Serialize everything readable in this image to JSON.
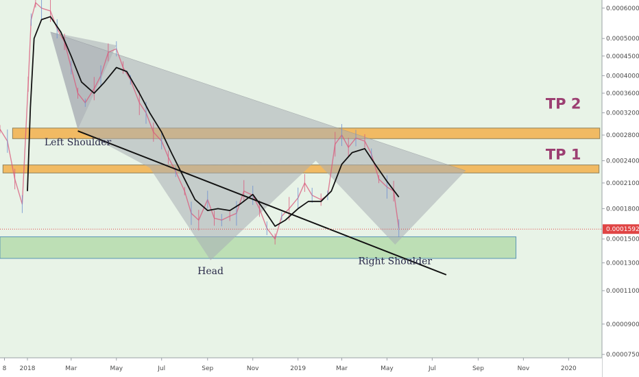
{
  "chart_data": {
    "type": "line",
    "title": "",
    "xlabel": "",
    "ylabel": "",
    "y_scale": "log",
    "ylim": [
      7.35e-05,
      0.00063
    ],
    "x_range": [
      "2017-11-25",
      "2020-02-15"
    ],
    "grid": false,
    "y_ticks": [
      "0.0006000",
      "0.0005000",
      "0.0004500",
      "0.0004000",
      "0.0003600",
      "0.0003200",
      "0.0002800",
      "0.0002400",
      "0.0002100",
      "0.0001800",
      "0.0001500",
      "0.0001300",
      "0.0001100",
      "0.0000900",
      "0.0000750"
    ],
    "x_ticks": [
      {
        "label": "8",
        "date": "2017-12-01"
      },
      {
        "label": "2018",
        "date": "2018-01-01"
      },
      {
        "label": "Mar",
        "date": "2018-03-01"
      },
      {
        "label": "May",
        "date": "2018-05-01"
      },
      {
        "label": "Jul",
        "date": "2018-07-01"
      },
      {
        "label": "Sep",
        "date": "2018-09-01"
      },
      {
        "label": "Nov",
        "date": "2018-11-01"
      },
      {
        "label": "2019",
        "date": "2019-01-01"
      },
      {
        "label": "Mar",
        "date": "2019-03-01"
      },
      {
        "label": "May",
        "date": "2019-05-01"
      },
      {
        "label": "Jul",
        "date": "2019-07-01"
      },
      {
        "label": "Sep",
        "date": "2019-09-01"
      },
      {
        "label": "Nov",
        "date": "2019-11-01"
      },
      {
        "label": "2020",
        "date": "2020-01-01"
      }
    ],
    "last_price": {
      "label": "0.0001592",
      "value": 0.0001592
    },
    "series": [
      {
        "role": "price",
        "color": "#d9577a",
        "points": [
          [
            "2017-11-25",
            0.00029
          ],
          [
            "2017-12-05",
            0.00027
          ],
          [
            "2017-12-15",
            0.000215
          ],
          [
            "2017-12-25",
            0.000185
          ],
          [
            "2018-01-02",
            0.00038
          ],
          [
            "2018-01-06",
            0.00056
          ],
          [
            "2018-01-12",
            0.00062
          ],
          [
            "2018-01-20",
            0.0006
          ],
          [
            "2018-02-01",
            0.00059
          ],
          [
            "2018-02-10",
            0.00053
          ],
          [
            "2018-02-20",
            0.00049
          ],
          [
            "2018-03-01",
            0.00042
          ],
          [
            "2018-03-10",
            0.00036
          ],
          [
            "2018-03-20",
            0.00034
          ],
          [
            "2018-04-01",
            0.00037
          ],
          [
            "2018-04-10",
            0.0004
          ],
          [
            "2018-04-20",
            0.00046
          ],
          [
            "2018-05-01",
            0.00047
          ],
          [
            "2018-05-10",
            0.00042
          ],
          [
            "2018-05-20",
            0.00039
          ],
          [
            "2018-06-01",
            0.00034
          ],
          [
            "2018-06-10",
            0.00032
          ],
          [
            "2018-06-20",
            0.000285
          ],
          [
            "2018-07-01",
            0.00027
          ],
          [
            "2018-07-10",
            0.000245
          ],
          [
            "2018-07-20",
            0.000225
          ],
          [
            "2018-08-01",
            0.0002
          ],
          [
            "2018-08-10",
            0.000175
          ],
          [
            "2018-08-20",
            0.000168
          ],
          [
            "2018-09-01",
            0.00019
          ],
          [
            "2018-09-10",
            0.00017
          ],
          [
            "2018-09-20",
            0.000168
          ],
          [
            "2018-10-01",
            0.000172
          ],
          [
            "2018-10-10",
            0.000175
          ],
          [
            "2018-10-20",
            0.0002
          ],
          [
            "2018-11-01",
            0.000195
          ],
          [
            "2018-11-10",
            0.00018
          ],
          [
            "2018-11-20",
            0.00016
          ],
          [
            "2018-12-01",
            0.00015
          ],
          [
            "2018-12-10",
            0.000172
          ],
          [
            "2018-12-20",
            0.00018
          ],
          [
            "2019-01-01",
            0.000192
          ],
          [
            "2019-01-10",
            0.00021
          ],
          [
            "2019-01-20",
            0.000195
          ],
          [
            "2019-02-01",
            0.00019
          ],
          [
            "2019-02-10",
            0.000195
          ],
          [
            "2019-02-20",
            0.000265
          ],
          [
            "2019-03-01",
            0.00028
          ],
          [
            "2019-03-10",
            0.00026
          ],
          [
            "2019-03-20",
            0.000275
          ],
          [
            "2019-04-01",
            0.00027
          ],
          [
            "2019-04-10",
            0.00025
          ],
          [
            "2019-04-20",
            0.000215
          ],
          [
            "2019-05-01",
            0.000205
          ],
          [
            "2019-05-10",
            0.0002
          ],
          [
            "2019-05-17",
            0.00016
          ]
        ]
      },
      {
        "role": "moving-average",
        "color": "#111111",
        "points": [
          [
            "2018-01-01",
            0.0002
          ],
          [
            "2018-01-05",
            0.00033
          ],
          [
            "2018-01-10",
            0.0005
          ],
          [
            "2018-01-20",
            0.00056
          ],
          [
            "2018-02-01",
            0.00057
          ],
          [
            "2018-02-15",
            0.00052
          ],
          [
            "2018-03-01",
            0.00045
          ],
          [
            "2018-03-15",
            0.000385
          ],
          [
            "2018-04-01",
            0.00036
          ],
          [
            "2018-04-15",
            0.000385
          ],
          [
            "2018-05-01",
            0.00042
          ],
          [
            "2018-05-15",
            0.00041
          ],
          [
            "2018-06-01",
            0.00036
          ],
          [
            "2018-06-15",
            0.00032
          ],
          [
            "2018-07-01",
            0.000285
          ],
          [
            "2018-07-15",
            0.00025
          ],
          [
            "2018-08-01",
            0.000215
          ],
          [
            "2018-08-15",
            0.00019
          ],
          [
            "2018-09-01",
            0.000178
          ],
          [
            "2018-09-15",
            0.00018
          ],
          [
            "2018-10-01",
            0.000178
          ],
          [
            "2018-10-15",
            0.000185
          ],
          [
            "2018-11-01",
            0.000196
          ],
          [
            "2018-11-15",
            0.00018
          ],
          [
            "2018-12-01",
            0.000162
          ],
          [
            "2018-12-15",
            0.000168
          ],
          [
            "2019-01-01",
            0.00018
          ],
          [
            "2019-01-15",
            0.000188
          ],
          [
            "2019-02-01",
            0.000188
          ],
          [
            "2019-02-15",
            0.0002
          ],
          [
            "2019-03-01",
            0.000235
          ],
          [
            "2019-03-15",
            0.000252
          ],
          [
            "2019-04-01",
            0.000258
          ],
          [
            "2019-04-15",
            0.000235
          ],
          [
            "2019-05-01",
            0.000212
          ],
          [
            "2019-05-17",
            0.000193
          ]
        ]
      }
    ],
    "resistance_zones": [
      {
        "label": "TP 2",
        "from": "2017-12-12",
        "to": "2020-02-12",
        "low": 0.000274,
        "high": 0.000292
      },
      {
        "label": "TP 1",
        "from": "2017-11-29",
        "to": "2020-02-11",
        "low": 0.000223,
        "high": 0.000234
      }
    ],
    "support_zone": {
      "from": "2017-11-25",
      "to": "2019-10-22",
      "low": 0.0001335,
      "high": 0.000152
    },
    "pattern": {
      "name": "Head and Shoulders",
      "left_triangle": [
        [
          "2018-02-01",
          0.00052
        ],
        [
          "2018-03-10",
          0.00029
        ],
        [
          "2018-05-01",
          0.00048
        ]
      ],
      "head_triangle": [
        [
          "2018-06-15",
          0.00023
        ],
        [
          "2018-09-05",
          0.000132
        ],
        [
          "2019-01-25",
          0.00024
        ]
      ],
      "right_triangle": [
        [
          "2019-01-25",
          0.00024
        ],
        [
          "2019-05-12",
          0.000145
        ],
        [
          "2019-08-15",
          0.000226
        ]
      ],
      "upper_line": [
        [
          "2018-02-01",
          0.00052
        ],
        [
          "2019-08-15",
          0.000226
        ]
      ],
      "neckline": [
        [
          "2018-03-10",
          0.000287
        ],
        [
          "2019-07-20",
          0.000121
        ]
      ]
    },
    "annotations": [
      {
        "text": "Left Shoulder",
        "date": "2018-03-10",
        "value": 0.000263
      },
      {
        "text": "Head",
        "date": "2018-09-05",
        "value": 0.0001215
      },
      {
        "text": "Right Shoulder",
        "date": "2019-05-12",
        "value": 0.000129
      },
      {
        "text": "TP 2",
        "date": "2019-12-01",
        "value": 0.000328
      },
      {
        "text": "TP 1",
        "date": "2019-12-01",
        "value": 0.000242
      }
    ]
  },
  "colors": {
    "background": "#e8f3e7",
    "zone_orange": "#f2b85c",
    "zone_green": "#b9ddb0",
    "triangle_gray": "#a7adb4",
    "price_red": "#d9577a",
    "tp_label": "#9c3f72",
    "last_price_tag": "#e04545"
  }
}
